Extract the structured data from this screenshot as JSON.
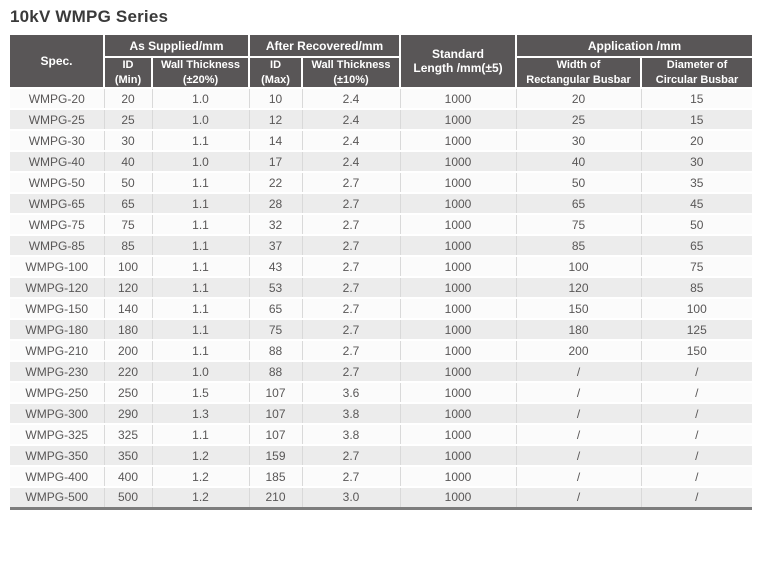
{
  "title": "10kV WMPG Series",
  "table": {
    "headers": {
      "spec": "Spec.",
      "as_supplied": "As Supplied/mm",
      "after_recovered": "After Recovered/mm",
      "standard_length": "Standard\nLength /mm(±5)",
      "application": "Application /mm",
      "id_min": "ID\n(Min)",
      "wall_thickness_20": "Wall Thickness\n(±20%)",
      "id_max": "ID\n(Max)",
      "wall_thickness_10": "Wall Thickness\n(±10%)",
      "width_rect_busbar": "Width of\nRectangular Busbar",
      "diameter_circ_busbar": "Diameter of\nCircular Busbar"
    },
    "rows": [
      [
        "WMPG-20",
        "20",
        "1.0",
        "10",
        "2.4",
        "1000",
        "20",
        "15"
      ],
      [
        "WMPG-25",
        "25",
        "1.0",
        "12",
        "2.4",
        "1000",
        "25",
        "15"
      ],
      [
        "WMPG-30",
        "30",
        "1.1",
        "14",
        "2.4",
        "1000",
        "30",
        "20"
      ],
      [
        "WMPG-40",
        "40",
        "1.0",
        "17",
        "2.4",
        "1000",
        "40",
        "30"
      ],
      [
        "WMPG-50",
        "50",
        "1.1",
        "22",
        "2.7",
        "1000",
        "50",
        "35"
      ],
      [
        "WMPG-65",
        "65",
        "1.1",
        "28",
        "2.7",
        "1000",
        "65",
        "45"
      ],
      [
        "WMPG-75",
        "75",
        "1.1",
        "32",
        "2.7",
        "1000",
        "75",
        "50"
      ],
      [
        "WMPG-85",
        "85",
        "1.1",
        "37",
        "2.7",
        "1000",
        "85",
        "65"
      ],
      [
        "WMPG-100",
        "100",
        "1.1",
        "43",
        "2.7",
        "1000",
        "100",
        "75"
      ],
      [
        "WMPG-120",
        "120",
        "1.1",
        "53",
        "2.7",
        "1000",
        "120",
        "85"
      ],
      [
        "WMPG-150",
        "140",
        "1.1",
        "65",
        "2.7",
        "1000",
        "150",
        "100"
      ],
      [
        "WMPG-180",
        "180",
        "1.1",
        "75",
        "2.7",
        "1000",
        "180",
        "125"
      ],
      [
        "WMPG-210",
        "200",
        "1.1",
        "88",
        "2.7",
        "1000",
        "200",
        "150"
      ],
      [
        "WMPG-230",
        "220",
        "1.0",
        "88",
        "2.7",
        "1000",
        "/",
        "/"
      ],
      [
        "WMPG-250",
        "250",
        "1.5",
        "107",
        "3.6",
        "1000",
        "/",
        "/"
      ],
      [
        "WMPG-300",
        "290",
        "1.3",
        "107",
        "3.8",
        "1000",
        "/",
        "/"
      ],
      [
        "WMPG-325",
        "325",
        "1.1",
        "107",
        "3.8",
        "1000",
        "/",
        "/"
      ],
      [
        "WMPG-350",
        "350",
        "1.2",
        "159",
        "2.7",
        "1000",
        "/",
        "/"
      ],
      [
        "WMPG-400",
        "400",
        "1.2",
        "185",
        "2.7",
        "1000",
        "/",
        "/"
      ],
      [
        "WMPG-500",
        "500",
        "1.2",
        "210",
        "3.0",
        "1000",
        "/",
        "/"
      ]
    ]
  },
  "colors": {
    "header_bg": "#595657",
    "header_text": "#ffffff",
    "row_odd": "#fbfbfb",
    "row_even": "#ececec",
    "body_text": "#595757",
    "grid_line": "#d9d9d9",
    "bottom_border": "#7d7d7d",
    "title_text": "#3a3a3a"
  }
}
